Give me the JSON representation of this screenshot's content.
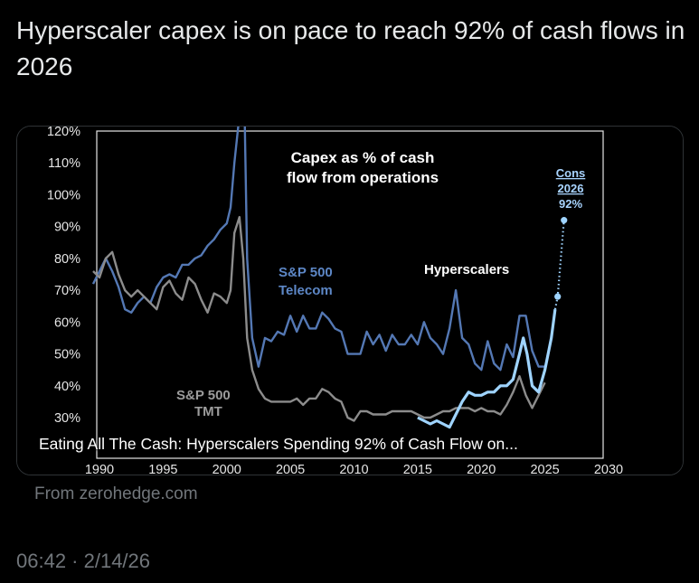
{
  "tweet": {
    "text": "Hyperscaler capex is on pace to reach 92% of cash flows in 2026",
    "timestamp": "06:42 · 2/14/26"
  },
  "card": {
    "overlay_title": "Eating All The Cash: Hyperscalers Spending 92% of Cash Flow on...",
    "source": "From zerohedge.com"
  },
  "colors": {
    "telecom": "#5478b4",
    "tmt": "#8c8c8c",
    "hyperscalers": "#9fd4ff",
    "plot_bg": "#000000"
  },
  "chart_data": {
    "type": "line",
    "title": "Capex as % of cash flow from operations",
    "title_lines": [
      "Capex as % of cash",
      "flow from operations"
    ],
    "ylim": [
      30,
      120
    ],
    "xlim": [
      1990,
      2030
    ],
    "y_ticks": [
      "120%",
      "110%",
      "100%",
      "90%",
      "80%",
      "70%",
      "60%",
      "50%",
      "40%",
      "30%"
    ],
    "y_tick_values": [
      120,
      110,
      100,
      90,
      80,
      70,
      60,
      50,
      40,
      30
    ],
    "x_ticks": [
      "1990",
      "1995",
      "2000",
      "2005",
      "2010",
      "2015",
      "2020",
      "2025",
      "2030"
    ],
    "x_tick_values": [
      1990,
      1995,
      2000,
      2005,
      2010,
      2015,
      2020,
      2025,
      2030
    ],
    "grid": false,
    "series": [
      {
        "name": "S&P 500 Telecom",
        "label_lines": [
          "S&P 500",
          "Telecom"
        ],
        "x": [
          1989.5,
          1990,
          1990.5,
          1991,
          1991.5,
          1992,
          1992.5,
          1993,
          1993.5,
          1994,
          1994.5,
          1995,
          1995.5,
          1996,
          1996.5,
          1997,
          1997.5,
          1998,
          1998.5,
          1999,
          1999.5,
          2000,
          2000.3,
          2000.6,
          2001,
          2001.3,
          2001.6,
          2002,
          2002.5,
          2003,
          2003.5,
          2004,
          2004.5,
          2005,
          2005.5,
          2006,
          2006.5,
          2007,
          2007.5,
          2008,
          2008.5,
          2009,
          2009.5,
          2010,
          2010.5,
          2011,
          2011.5,
          2012,
          2012.5,
          2013,
          2013.5,
          2014,
          2014.5,
          2015,
          2015.5,
          2016,
          2016.5,
          2017,
          2017.5,
          2018,
          2018.5,
          2019,
          2019.5,
          2020,
          2020.5,
          2021,
          2021.5,
          2022,
          2022.5,
          2023,
          2023.5,
          2024,
          2024.5,
          2025
        ],
        "values": [
          72,
          76,
          80,
          76,
          71,
          64,
          63,
          66,
          68,
          66,
          71,
          74,
          75,
          74,
          78,
          78,
          80,
          81,
          84,
          86,
          89,
          91,
          96,
          110,
          125,
          150,
          80,
          55,
          46,
          55,
          54,
          57,
          56,
          62,
          57,
          62,
          58,
          58,
          63,
          61,
          58,
          57,
          50,
          50,
          50,
          57,
          53,
          56,
          51,
          56,
          53,
          53,
          56,
          53,
          60,
          55,
          53,
          50,
          58,
          70,
          55,
          53,
          47,
          45,
          54,
          47,
          45,
          53,
          49,
          62,
          62,
          51,
          46,
          46
        ]
      },
      {
        "name": "S&P 500 TMT",
        "label_lines": [
          "S&P 500",
          "TMT"
        ],
        "x": [
          1989.5,
          1990,
          1990.5,
          1991,
          1991.5,
          1992,
          1992.5,
          1993,
          1993.5,
          1994,
          1994.5,
          1995,
          1995.5,
          1996,
          1996.5,
          1997,
          1997.5,
          1998,
          1998.5,
          1999,
          1999.5,
          2000,
          2000.3,
          2000.6,
          2001,
          2001.3,
          2001.6,
          2002,
          2002.5,
          2003,
          2003.5,
          2004,
          2004.5,
          2005,
          2005.5,
          2006,
          2006.5,
          2007,
          2007.5,
          2008,
          2008.5,
          2009,
          2009.5,
          2010,
          2010.5,
          2011,
          2011.5,
          2012,
          2012.5,
          2013,
          2013.5,
          2014,
          2014.5,
          2015,
          2015.5,
          2016,
          2016.5,
          2017,
          2017.5,
          2018,
          2018.5,
          2019,
          2019.5,
          2020,
          2020.5,
          2021,
          2021.5,
          2022,
          2022.5,
          2023,
          2023.5,
          2024,
          2024.5,
          2025
        ],
        "values": [
          76,
          74,
          80,
          82,
          75,
          70,
          68,
          70,
          68,
          66,
          64,
          71,
          73,
          69,
          67,
          74,
          72,
          67,
          63,
          69,
          68,
          66,
          70,
          88,
          93,
          80,
          55,
          45,
          39,
          36,
          35,
          35,
          35,
          35,
          36,
          34,
          36,
          36,
          39,
          38,
          36,
          35,
          30,
          29,
          32,
          32,
          31,
          31,
          31,
          32,
          32,
          32,
          32,
          31,
          30,
          30,
          31,
          32,
          32,
          33,
          33,
          33,
          32,
          33,
          32,
          32,
          31,
          34,
          38,
          43,
          37,
          33,
          37,
          41
        ]
      },
      {
        "name": "Hyperscalers",
        "label_lines": [
          "Hyperscalers"
        ],
        "x": [
          2015,
          2015.5,
          2016,
          2016.5,
          2017,
          2017.5,
          2018,
          2018.5,
          2019,
          2019.5,
          2020,
          2020.5,
          2021,
          2021.5,
          2022,
          2022.5,
          2023,
          2023.3,
          2023.6,
          2024,
          2024.5,
          2025,
          2025.5,
          2025.8
        ],
        "values": [
          30,
          29,
          28,
          29,
          28,
          27,
          31,
          35,
          38,
          37,
          37,
          38,
          38,
          40,
          40,
          42,
          50,
          55,
          50,
          40,
          38,
          45,
          55,
          64
        ]
      },
      {
        "name": "Cons 2026 92%",
        "label_lines": [
          "Cons",
          "2026",
          "92%"
        ],
        "dotted": true,
        "x": [
          2025.8,
          2026.0,
          2026.5
        ],
        "values": [
          64,
          68,
          92
        ]
      }
    ]
  }
}
